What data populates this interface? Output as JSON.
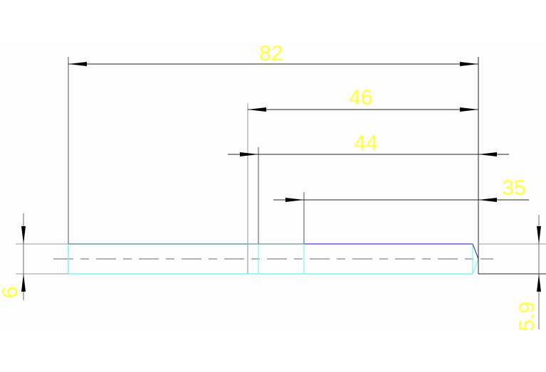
{
  "drawing": {
    "dimensions": {
      "overall_length": "82",
      "length_46": "46",
      "length_44": "44",
      "length_35": "35",
      "left_diameter": "6",
      "right_diameter": "5.9"
    },
    "colors": {
      "dimension_text": "#ffff3a",
      "dimension_line": "#000000",
      "part_outline_cyan": "#7ff5f5",
      "part_outline_blue": "#4a3fd0",
      "part_outline_teal": "#3f8a8a",
      "centerline": "#9a9a9a"
    }
  }
}
